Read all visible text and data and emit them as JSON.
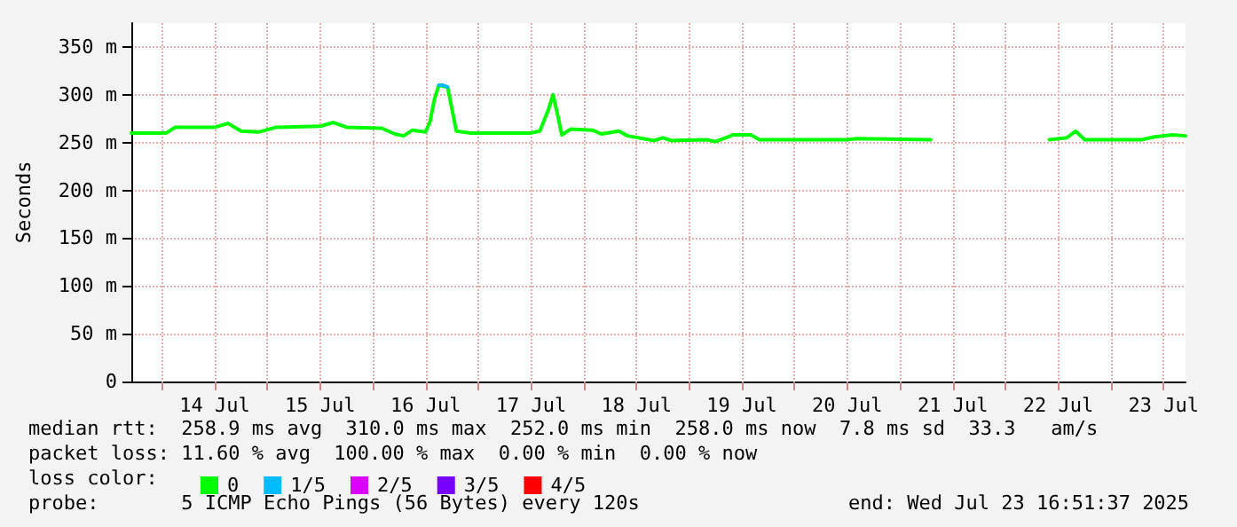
{
  "chart_data": {
    "type": "line",
    "ylabel": "Seconds",
    "xlim": [
      "2025-07-13T17:00",
      "2025-07-23T17:00"
    ],
    "xticks": [
      {
        "value": "2025-07-14T00:00",
        "label": null
      },
      {
        "value": "2025-07-14T12:00",
        "label": "14 Jul"
      },
      {
        "value": "2025-07-15T00:00",
        "label": null
      },
      {
        "value": "2025-07-15T12:00",
        "label": "15 Jul"
      },
      {
        "value": "2025-07-16T00:00",
        "label": null
      },
      {
        "value": "2025-07-16T12:00",
        "label": "16 Jul"
      },
      {
        "value": "2025-07-17T00:00",
        "label": null
      },
      {
        "value": "2025-07-17T12:00",
        "label": "17 Jul"
      },
      {
        "value": "2025-07-18T00:00",
        "label": null
      },
      {
        "value": "2025-07-18T12:00",
        "label": "18 Jul"
      },
      {
        "value": "2025-07-19T00:00",
        "label": null
      },
      {
        "value": "2025-07-19T12:00",
        "label": "19 Jul"
      },
      {
        "value": "2025-07-20T00:00",
        "label": null
      },
      {
        "value": "2025-07-20T12:00",
        "label": "20 Jul"
      },
      {
        "value": "2025-07-21T00:00",
        "label": null
      },
      {
        "value": "2025-07-21T12:00",
        "label": "21 Jul"
      },
      {
        "value": "2025-07-22T00:00",
        "label": null
      },
      {
        "value": "2025-07-22T12:00",
        "label": "22 Jul"
      },
      {
        "value": "2025-07-23T00:00",
        "label": null
      },
      {
        "value": "2025-07-23T12:00",
        "label": "23 Jul"
      }
    ],
    "ylim": [
      0,
      375
    ],
    "yticks": [
      0,
      {
        "value": 50,
        "label": "50 m"
      },
      {
        "value": 100,
        "label": "100 m"
      },
      {
        "value": 150,
        "label": "150 m"
      },
      {
        "value": 200,
        "label": "200 m"
      },
      {
        "value": 250,
        "label": "250 m"
      },
      {
        "value": 300,
        "label": "300 m"
      },
      {
        "value": 350,
        "label": "350 m"
      }
    ],
    "grid": true,
    "legend": "bottom",
    "marker": "none",
    "line_style": "solid",
    "x": [
      "2025-07-13T17:00",
      "2025-07-14T01:00",
      "2025-07-14T03:00",
      "2025-07-14T12:00",
      "2025-07-14T15:00",
      "2025-07-14T18:00",
      "2025-07-14T22:00",
      "2025-07-15T02:00",
      "2025-07-15T12:00",
      "2025-07-15T15:00",
      "2025-07-15T18:00",
      "2025-07-16T02:00",
      "2025-07-16T05:00",
      "2025-07-16T07:00",
      "2025-07-16T09:00",
      "2025-07-16T12:00",
      "2025-07-16T13:00",
      "2025-07-16T14:00",
      "2025-07-16T15:00",
      "2025-07-16T17:00",
      "2025-07-16T18:00",
      "2025-07-16T19:00",
      "2025-07-16T22:00",
      "2025-07-17T12:00",
      "2025-07-17T14:00",
      "2025-07-17T16:00",
      "2025-07-17T17:00",
      "2025-07-17T18:00",
      "2025-07-17T19:00",
      "2025-07-17T21:00",
      "2025-07-18T02:00",
      "2025-07-18T04:00",
      "2025-07-18T08:00",
      "2025-07-18T10:00",
      "2025-07-18T16:00",
      "2025-07-18T18:00",
      "2025-07-18T20:00",
      "2025-07-19T04:00",
      "2025-07-19T06:00",
      "2025-07-19T10:00",
      "2025-07-19T14:00",
      "2025-07-19T16:00",
      "2025-07-20T12:00",
      "2025-07-20T14:00",
      "2025-07-21T07:00",
      "2025-07-21T18:00",
      "2025-07-22T10:00",
      "2025-07-22T14:00",
      "2025-07-22T16:00",
      "2025-07-22T18:00",
      "2025-07-23T07:00",
      "2025-07-23T10:00",
      "2025-07-23T14:00",
      "2025-07-23T17:00"
    ],
    "series": [
      {
        "name": "0",
        "color": "#00ff00",
        "values": [
          260,
          260,
          266,
          266,
          270,
          262,
          261,
          266,
          267,
          271,
          266,
          265,
          259,
          257,
          263,
          261,
          272,
          295,
          310,
          308,
          285,
          262,
          260,
          260,
          262,
          285,
          300,
          280,
          258,
          264,
          263,
          259,
          262,
          257,
          252,
          255,
          252,
          253,
          251,
          258,
          258,
          253,
          253,
          254,
          253,
          null,
          253,
          255,
          262,
          253,
          253,
          256,
          258,
          257
        ]
      },
      {
        "name": "1/5",
        "color": "#00bbff",
        "x": [
          "2025-07-16T15:00",
          "2025-07-16T16:00",
          "2025-07-16T17:00"
        ],
        "values": [
          310,
          310,
          308
        ]
      },
      {
        "name": "2/5",
        "color": "#dd00ff",
        "values": [
          null,
          null,
          null,
          null,
          null,
          null,
          null,
          null,
          null,
          null,
          null,
          null,
          null,
          null,
          null,
          null,
          null,
          null,
          null,
          null,
          null,
          null,
          null,
          null,
          null,
          null,
          null,
          null,
          null,
          null,
          null,
          null,
          null,
          null,
          null,
          null,
          null,
          null,
          null,
          null,
          null,
          null,
          null,
          null,
          null,
          null,
          null,
          null,
          null,
          null,
          null,
          null,
          null,
          null
        ]
      },
      {
        "name": "3/5",
        "color": "#7700ff",
        "values": [
          null,
          null,
          null,
          null,
          null,
          null,
          null,
          null,
          null,
          null,
          null,
          null,
          null,
          null,
          null,
          null,
          null,
          null,
          null,
          null,
          null,
          null,
          null,
          null,
          null,
          null,
          null,
          null,
          null,
          null,
          null,
          null,
          null,
          null,
          null,
          null,
          null,
          null,
          null,
          null,
          null,
          null,
          null,
          null,
          null,
          null,
          null,
          null,
          null,
          null,
          null,
          null,
          null,
          null
        ]
      },
      {
        "name": "4/5",
        "color": "#ff0000",
        "values": [
          null,
          null,
          null,
          null,
          null,
          null,
          null,
          null,
          null,
          null,
          null,
          null,
          null,
          null,
          null,
          null,
          null,
          null,
          null,
          null,
          null,
          null,
          null,
          null,
          null,
          null,
          null,
          null,
          null,
          null,
          null,
          null,
          null,
          null,
          null,
          null,
          null,
          null,
          null,
          null,
          null,
          null,
          null,
          null,
          null,
          null,
          null,
          null,
          null,
          null,
          null,
          null,
          null,
          null
        ]
      }
    ],
    "annotations": [
      "median rtt:  258.9 ms avg  310.0 ms max  252.0 ms min  258.0 ms now  7.8 ms sd  33.3   am/s",
      "packet loss: 11.60 % avg  100.00 % max  0.00 % min  0.00 % now",
      "loss color:",
      "probe:       5 ICMP Echo Pings (56 Bytes) every 120s",
      "end: Wed Jul 23 16:51:37 2025"
    ]
  }
}
